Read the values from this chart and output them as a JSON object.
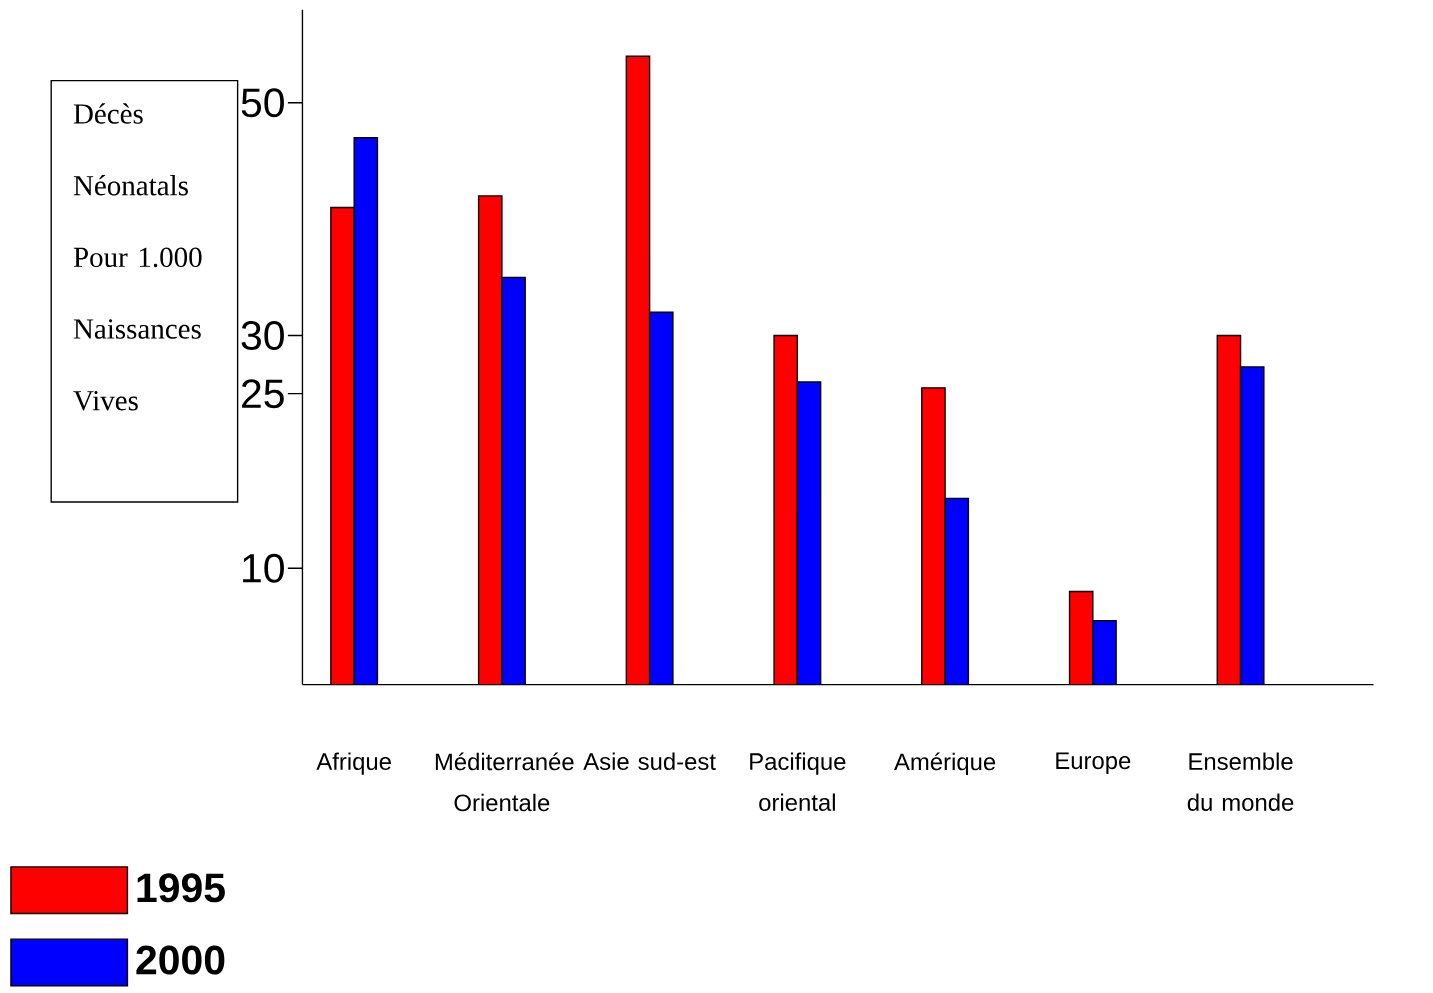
{
  "chart_data": {
    "type": "bar",
    "ylabel": "Décès Néonatals Pour 1.000 Naissances Vives",
    "categories": [
      "Afrique",
      "Méditerranée Orientale",
      "Asie sud-est",
      "Pacifique oriental",
      "Amérique",
      "Europe",
      "Ensemble du monde"
    ],
    "series": [
      {
        "name": "1995",
        "color": "#ff0000",
        "values": [
          41,
          42,
          54,
          30,
          25.5,
          8,
          30
        ]
      },
      {
        "name": "2000",
        "color": "#0000ff",
        "values": [
          47,
          35,
          32,
          26,
          16,
          5.5,
          27.3
        ]
      }
    ],
    "ylim": [
      0,
      58
    ],
    "yticks": [
      10,
      25,
      30,
      50
    ],
    "legend": "bottom left"
  }
}
